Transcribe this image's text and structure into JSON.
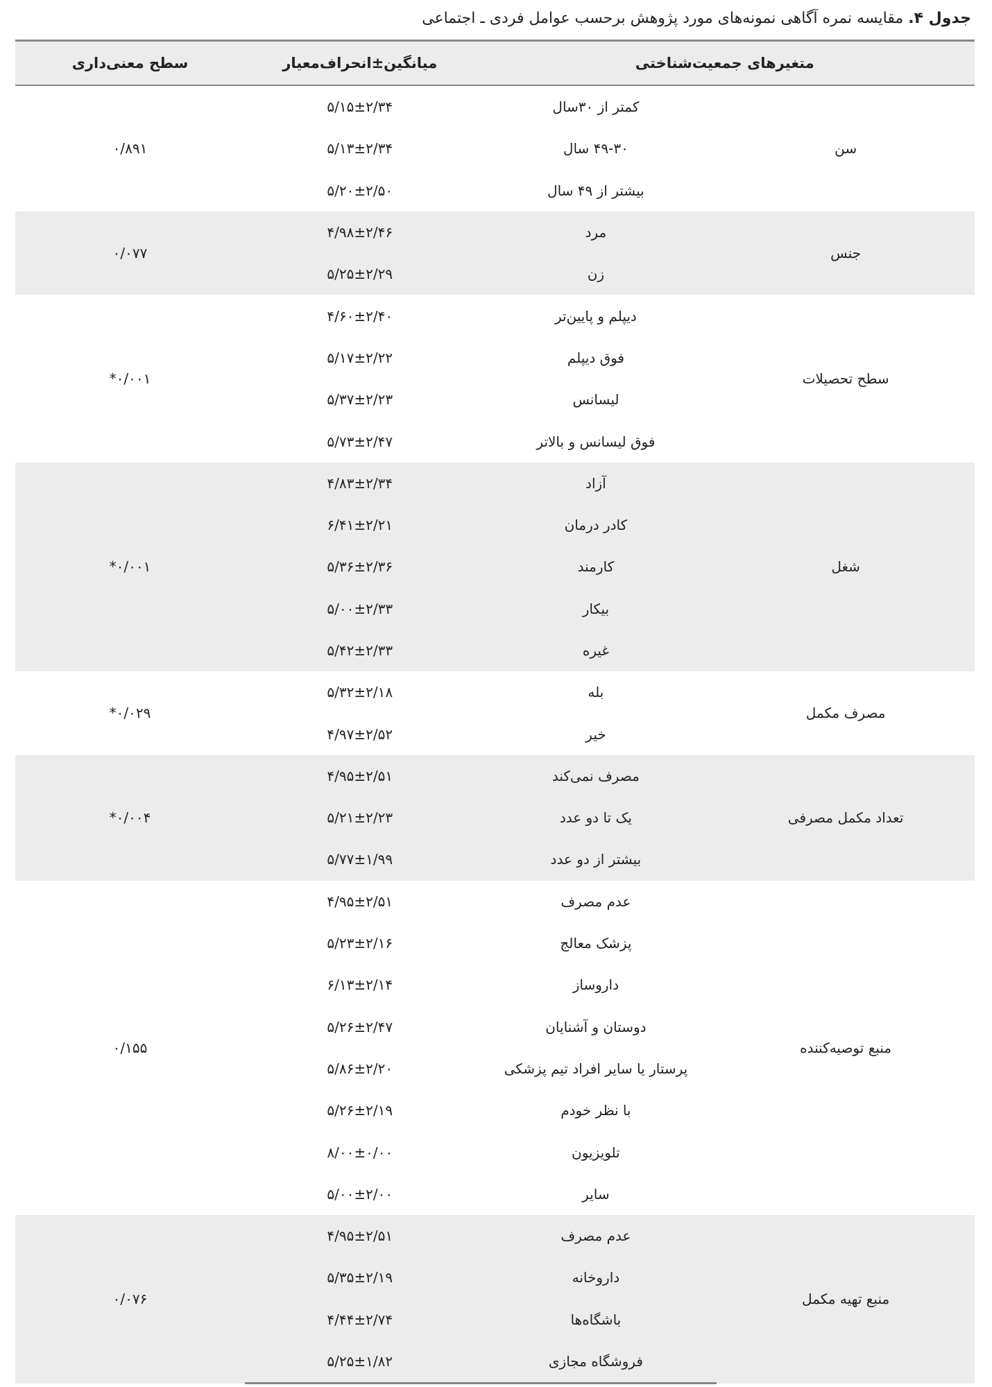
{
  "caption": {
    "label": "جدول ۴.",
    "text": "مقایسه نمره آگاهی نمونه‌های مورد پژوهش برحسب عوامل فردی ـ اجتماعی"
  },
  "headers": {
    "variables": "متغیرهای جمعیت‌شناختی",
    "mean_sd": "میانگین±انحراف‌معیار",
    "significance": "سطح معنی‌داری"
  },
  "groups": [
    {
      "name": "سن",
      "p": "۰/۸۹۱",
      "rows": [
        {
          "label": "کمتر از ۳۰سال",
          "value": "۵/۱۵±۲/۳۴"
        },
        {
          "label": "۴۹-۳۰ سال",
          "value": "۵/۱۳±۲/۳۴"
        },
        {
          "label": "بیشتر از ۴۹ سال",
          "value": "۵/۲۰±۲/۵۰"
        }
      ]
    },
    {
      "name": "جنس",
      "p": "۰/۰۷۷",
      "rows": [
        {
          "label": "مرد",
          "value": "۴/۹۸±۲/۴۶"
        },
        {
          "label": "زن",
          "value": "۵/۲۵±۲/۲۹"
        }
      ]
    },
    {
      "name": "سطح تحصیلات",
      "p": "۰/۰۰۱*",
      "rows": [
        {
          "label": "دیپلم و پایین‌تر",
          "value": "۴/۶۰±۲/۴۰"
        },
        {
          "label": "فوق دیپلم",
          "value": "۵/۱۷±۲/۲۲"
        },
        {
          "label": "لیسانس",
          "value": "۵/۳۷±۲/۲۳"
        },
        {
          "label": "فوق لیسانس و بالاتر",
          "value": "۵/۷۳±۲/۴۷"
        }
      ]
    },
    {
      "name": "شغل",
      "p": "۰/۰۰۱*",
      "rows": [
        {
          "label": "آزاد",
          "value": "۴/۸۳±۲/۳۴"
        },
        {
          "label": "کادر درمان",
          "value": "۶/۴۱±۲/۲۱"
        },
        {
          "label": "کارمند",
          "value": "۵/۳۶±۲/۳۶"
        },
        {
          "label": "بیکار",
          "value": "۵/۰۰±۲/۳۳"
        },
        {
          "label": "غیره",
          "value": "۵/۴۲±۲/۳۳"
        }
      ]
    },
    {
      "name": "مصرف مکمل",
      "p": "۰/۰۲۹*",
      "rows": [
        {
          "label": "بله",
          "value": "۵/۳۲±۲/۱۸"
        },
        {
          "label": "خیر",
          "value": "۴/۹۷±۲/۵۲"
        }
      ]
    },
    {
      "name": "تعداد مکمل مصرفی",
      "p": "۰/۰۰۴*",
      "rows": [
        {
          "label": "مصرف نمی‌کند",
          "value": "۴/۹۵±۲/۵۱"
        },
        {
          "label": "یک تا دو عدد",
          "value": "۵/۲۱±۲/۲۳"
        },
        {
          "label": "بیشتر از دو عدد",
          "value": "۵/۷۷±۱/۹۹"
        }
      ]
    },
    {
      "name": "منبع توصیه‌کننده",
      "p": "۰/۱۵۵",
      "rows": [
        {
          "label": "عدم مصرف",
          "value": "۴/۹۵±۲/۵۱"
        },
        {
          "label": "پزشک معالج",
          "value": "۵/۲۳±۲/۱۶"
        },
        {
          "label": "داروساز",
          "value": "۶/۱۳±۲/۱۴"
        },
        {
          "label": "دوستان و آشنایان",
          "value": "۵/۲۶±۲/۴۷"
        },
        {
          "label": "پرستار یا سایر افراد تیم پزشکی",
          "value": "۵/۸۶±۲/۲۰"
        },
        {
          "label": "با نظر خودم",
          "value": "۵/۲۶±۲/۱۹"
        },
        {
          "label": "تلویزیون",
          "value": "۸/۰۰±۰/۰۰"
        },
        {
          "label": "سایر",
          "value": "۵/۰۰±۲/۰۰"
        }
      ]
    },
    {
      "name": "منبع تهیه مکمل",
      "p": "۰/۰۷۶",
      "rows": [
        {
          "label": "عدم مصرف",
          "value": "۴/۹۵±۲/۵۱"
        },
        {
          "label": "داروخانه",
          "value": "۵/۳۵±۲/۱۹"
        },
        {
          "label": "باشگاه‌ها",
          "value": "۴/۴۴±۲/۷۴"
        },
        {
          "label": "فروشگاه مجازی",
          "value": "۵/۲۵±۱/۸۲"
        }
      ]
    }
  ]
}
